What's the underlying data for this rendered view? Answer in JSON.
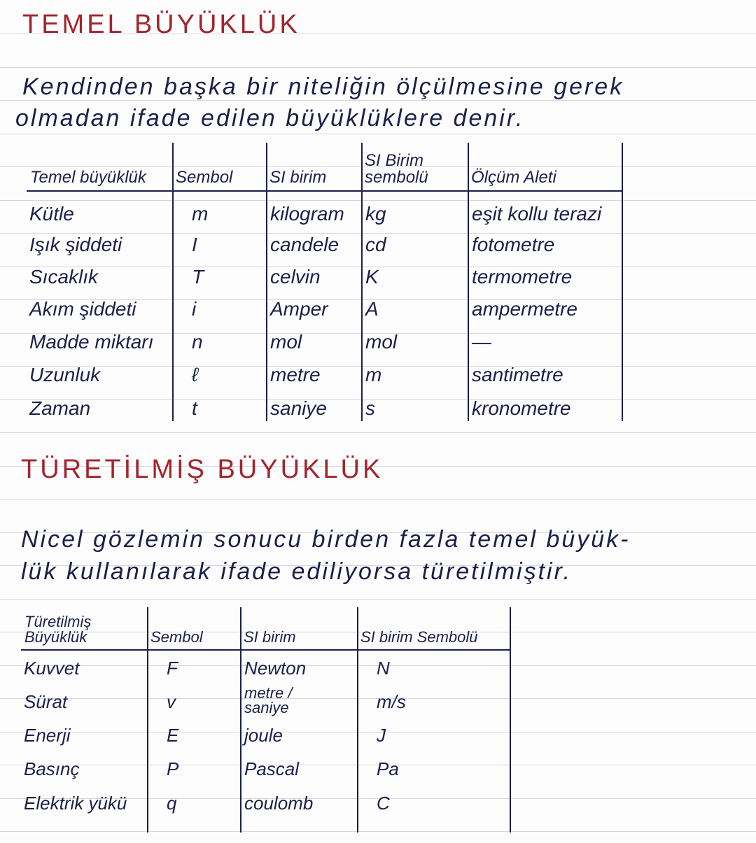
{
  "section1": {
    "title": "TEMEL BÜYÜKLÜK",
    "definition_lines": [
      "Kendinden başka bir niteliğin ölçülmesine gerek",
      "olmadan ifade edilen büyüklüklere denir."
    ],
    "table": {
      "headers": [
        "Temel büyüklük",
        "Sembol",
        "SI birim",
        "SI Birim sembolü",
        "Ölçüm Aleti"
      ],
      "rows": [
        [
          "Kütle",
          "m",
          "kilogram",
          "kg",
          "eşit kollu terazi"
        ],
        [
          "Işık şiddeti",
          "I",
          "candele",
          "cd",
          "fotometre"
        ],
        [
          "Sıcaklık",
          "T",
          "celvin",
          "K",
          "termometre"
        ],
        [
          "Akım şiddeti",
          "i",
          "Amper",
          "A",
          "ampermetre"
        ],
        [
          "Madde miktarı",
          "n",
          "mol",
          "mol",
          "—"
        ],
        [
          "Uzunluk",
          "ℓ",
          "metre",
          "m",
          "santimetre"
        ],
        [
          "Zaman",
          "t",
          "saniye",
          "s",
          "kronometre"
        ]
      ]
    }
  },
  "section2": {
    "title": "TÜRETİLMİŞ BÜYÜKLÜK",
    "definition_lines": [
      "Nicel gözlemin sonucu birden fazla temel büyük-",
      "lük kullanılarak ifade ediliyorsa türetilmiştir."
    ],
    "table": {
      "headers": [
        "Türetilmiş Büyüklük",
        "Sembol",
        "SI birim",
        "SI birim Sembolü"
      ],
      "rows": [
        [
          "Kuvvet",
          "F",
          "Newton",
          "N"
        ],
        [
          "Sürat",
          "v",
          "metre / saniye",
          "m/s"
        ],
        [
          "Enerji",
          "E",
          "joule",
          "J"
        ],
        [
          "Basınç",
          "P",
          "Pascal",
          "Pa"
        ],
        [
          "Elektrik yükü",
          "q",
          "coulomb",
          "C"
        ]
      ]
    }
  },
  "colors": {
    "title": "#a3242e",
    "ink": "#1c1f4a",
    "rule": "#d6d6da"
  }
}
